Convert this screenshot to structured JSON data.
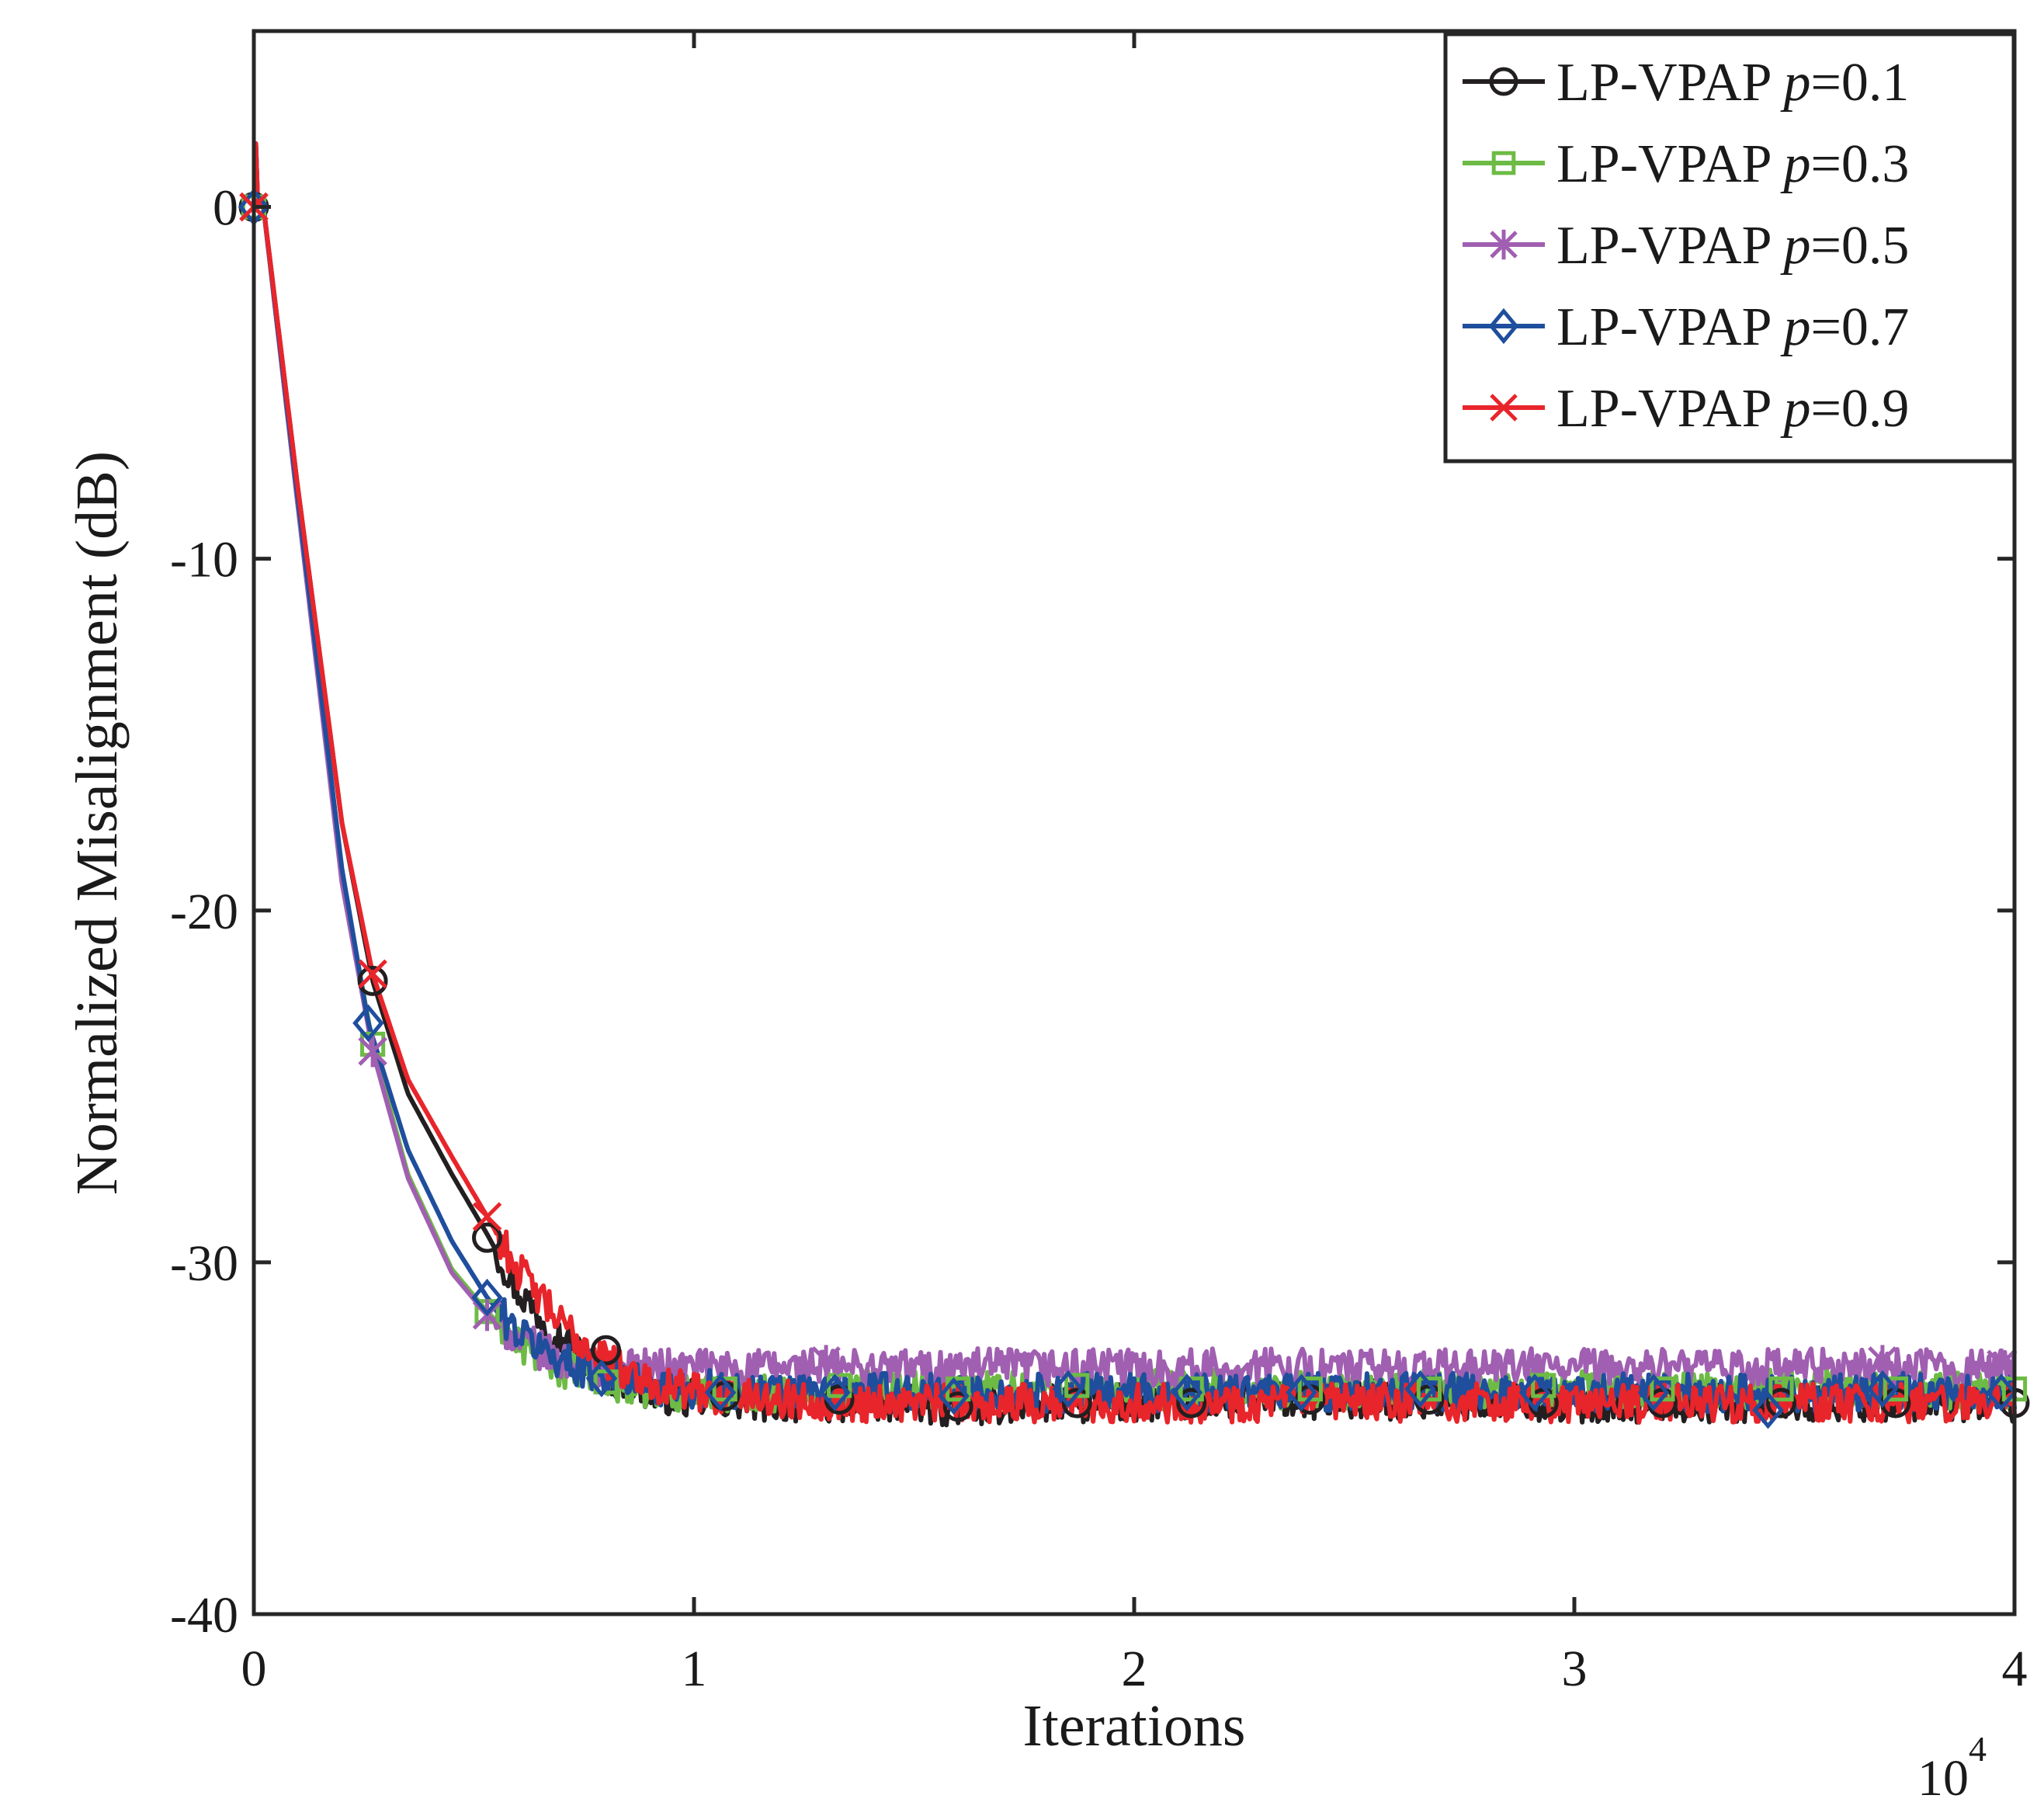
{
  "chart_data": {
    "type": "line",
    "xlabel": "Iterations",
    "ylabel": "Normalized Misalignment (dB)",
    "x_multiplier_base": "10",
    "x_multiplier_exp": "4",
    "xlim": [
      0,
      4
    ],
    "ylim": [
      -40,
      5
    ],
    "xticks": [
      0,
      1,
      2,
      3,
      4
    ],
    "xtick_labels": [
      "0",
      "1",
      "2",
      "3",
      "4"
    ],
    "yticks": [
      0,
      -10,
      -20,
      -30,
      -40
    ],
    "ytick_labels": [
      "0",
      "-10",
      "-20",
      "-30",
      "-40"
    ],
    "grid": false,
    "legend_position": "top-right",
    "legend_prefix": "LP-VPAP",
    "legend_var": "p",
    "series": [
      {
        "name": "LP-VPAP p=0.1",
        "p_value": "=0.1",
        "color": "#231f20",
        "marker": "circle",
        "x": [
          0,
          0.02,
          0.1,
          0.2,
          0.27,
          0.35,
          0.45,
          0.53,
          0.6,
          0.7,
          0.8,
          0.9,
          1.0,
          1.2,
          1.4,
          1.6,
          1.8,
          2.0,
          2.5,
          3.0,
          3.5,
          4.0
        ],
        "y": [
          0,
          0.2,
          -8,
          -17.5,
          -22,
          -25.2,
          -27.5,
          -29.2,
          -30.8,
          -32.2,
          -33.2,
          -33.7,
          -33.9,
          -34.0,
          -34.0,
          -34.1,
          -34.0,
          -34.0,
          -33.9,
          -34.0,
          -34.0,
          -34.0
        ],
        "markers_x": [
          0,
          0.27,
          0.53,
          0.8,
          1.07,
          1.33,
          1.6,
          1.87,
          2.13,
          2.4,
          2.67,
          2.93,
          3.2,
          3.47,
          3.73,
          4.0
        ],
        "markers_y": [
          0,
          -22,
          -29.3,
          -32.5,
          -33.8,
          -33.9,
          -34.1,
          -34.0,
          -34.0,
          -33.9,
          -33.9,
          -34.0,
          -34.0,
          -34.0,
          -34.0,
          -34.0
        ]
      },
      {
        "name": "LP-VPAP p=0.3",
        "p_value": "=0.3",
        "color": "#6dbb45",
        "marker": "square",
        "x": [
          0,
          0.02,
          0.1,
          0.2,
          0.27,
          0.35,
          0.45,
          0.53,
          0.6,
          0.7,
          0.8,
          0.9,
          1.0,
          1.2,
          1.4,
          1.6,
          1.8,
          2.0,
          2.5,
          3.0,
          3.5,
          4.0
        ],
        "y": [
          0,
          0.2,
          -8.5,
          -19,
          -23.8,
          -27.5,
          -30.2,
          -31.4,
          -32.3,
          -33.0,
          -33.4,
          -33.6,
          -33.7,
          -33.7,
          -33.6,
          -33.6,
          -33.6,
          -33.6,
          -33.6,
          -33.6,
          -33.6,
          -33.6
        ],
        "markers_x": [
          0,
          0.27,
          0.53,
          0.8,
          1.07,
          1.33,
          1.6,
          1.87,
          2.13,
          2.4,
          2.67,
          2.93,
          3.2,
          3.47,
          3.73,
          4.0
        ],
        "markers_y": [
          0,
          -23.8,
          -31.4,
          -33.4,
          -33.6,
          -33.5,
          -33.6,
          -33.5,
          -33.6,
          -33.6,
          -33.6,
          -33.5,
          -33.6,
          -33.6,
          -33.6,
          -33.6
        ]
      },
      {
        "name": "LP-VPAP p=0.5",
        "p_value": "=0.5",
        "color": "#a05fb1",
        "marker": "asterisk",
        "x": [
          0,
          0.02,
          0.1,
          0.2,
          0.27,
          0.35,
          0.45,
          0.53,
          0.6,
          0.7,
          0.8,
          0.9,
          1.0,
          1.2,
          1.4,
          1.6,
          1.8,
          2.0,
          2.5,
          3.0,
          3.5,
          4.0
        ],
        "y": [
          0,
          0.2,
          -8.5,
          -19.2,
          -24,
          -27.6,
          -30.3,
          -31.5,
          -32.2,
          -32.8,
          -33.0,
          -33.0,
          -33.0,
          -33.0,
          -33.0,
          -33.0,
          -33.0,
          -33.0,
          -33.0,
          -33.0,
          -33.0,
          -33.0
        ],
        "markers_x": [
          0,
          0.27,
          0.53,
          1.3,
          3.7,
          3.97
        ],
        "markers_y": [
          0,
          -24,
          -31.5,
          -32.8,
          -32.8,
          -32.9
        ]
      },
      {
        "name": "LP-VPAP p=0.7",
        "p_value": "=0.7",
        "color": "#1f4e9d",
        "marker": "diamond",
        "x": [
          0,
          0.02,
          0.1,
          0.2,
          0.26,
          0.35,
          0.45,
          0.53,
          0.6,
          0.7,
          0.8,
          0.9,
          1.0,
          1.2,
          1.4,
          1.6,
          1.8,
          2.0,
          2.5,
          3.0,
          3.5,
          4.0
        ],
        "y": [
          0,
          0.2,
          -8.3,
          -18.8,
          -23.2,
          -26.8,
          -29.4,
          -31.0,
          -32.0,
          -32.8,
          -33.2,
          -33.5,
          -33.6,
          -33.7,
          -33.7,
          -33.7,
          -33.7,
          -33.7,
          -33.7,
          -33.7,
          -33.7,
          -33.7
        ],
        "markers_x": [
          0,
          0.26,
          0.53,
          0.79,
          1.06,
          1.32,
          1.59,
          1.85,
          2.12,
          2.38,
          2.65,
          2.91,
          3.18,
          3.44,
          3.7,
          3.97
        ],
        "markers_y": [
          0,
          -23.2,
          -31.0,
          -33.3,
          -33.7,
          -33.7,
          -33.8,
          -33.6,
          -33.7,
          -33.7,
          -33.6,
          -33.7,
          -33.7,
          -34.2,
          -33.6,
          -33.7
        ]
      },
      {
        "name": "LP-VPAP p=0.9",
        "p_value": "=0.9",
        "color": "#e8252b",
        "marker": "x",
        "x": [
          0,
          0.02,
          0.1,
          0.2,
          0.27,
          0.35,
          0.45,
          0.53,
          0.6,
          0.7,
          0.8,
          0.9,
          1.0,
          1.2,
          1.4,
          1.6,
          1.8,
          2.0,
          2.5,
          3.0,
          3.5,
          4.0
        ],
        "y": [
          0,
          0.2,
          -8,
          -17.5,
          -21.8,
          -24.8,
          -27.0,
          -28.7,
          -30.2,
          -31.8,
          -32.8,
          -33.4,
          -33.7,
          -33.9,
          -34.0,
          -34.0,
          -34.0,
          -34.0,
          -34.0,
          -34.0,
          -34.0,
          -34.0
        ],
        "markers_x": [
          0,
          0.27,
          0.53
        ],
        "markers_y": [
          0,
          -21.8,
          -28.7
        ]
      }
    ]
  }
}
